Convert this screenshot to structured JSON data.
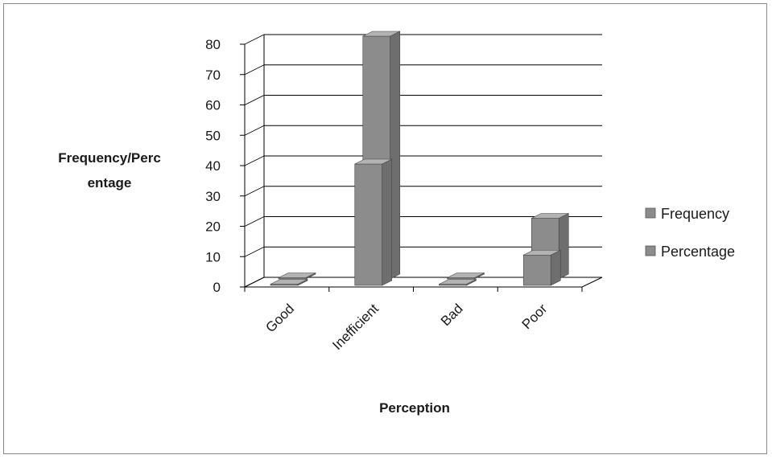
{
  "chart_data": {
    "type": "bar",
    "categories": [
      "Good",
      "Inefficient",
      "Bad",
      "Poor"
    ],
    "series": [
      {
        "name": "Frequency",
        "values": [
          0,
          40,
          0,
          10
        ]
      },
      {
        "name": "Percentage",
        "values": [
          0,
          80,
          0,
          20
        ]
      }
    ],
    "title": "",
    "xlabel": "Perception",
    "ylabel_line1": "Frequency/Perc",
    "ylabel_line2": "entage",
    "ylim": [
      0,
      80
    ],
    "yticks": [
      "0",
      "10",
      "20",
      "30",
      "40",
      "50",
      "60",
      "70",
      "80"
    ],
    "grid": true,
    "legend_position": "right",
    "three_d": true,
    "colors": {
      "bar_front": "#8c8c8c",
      "bar_side": "#6e6e6e",
      "bar_top": "#b3b3b3",
      "grid": "#000000"
    }
  }
}
